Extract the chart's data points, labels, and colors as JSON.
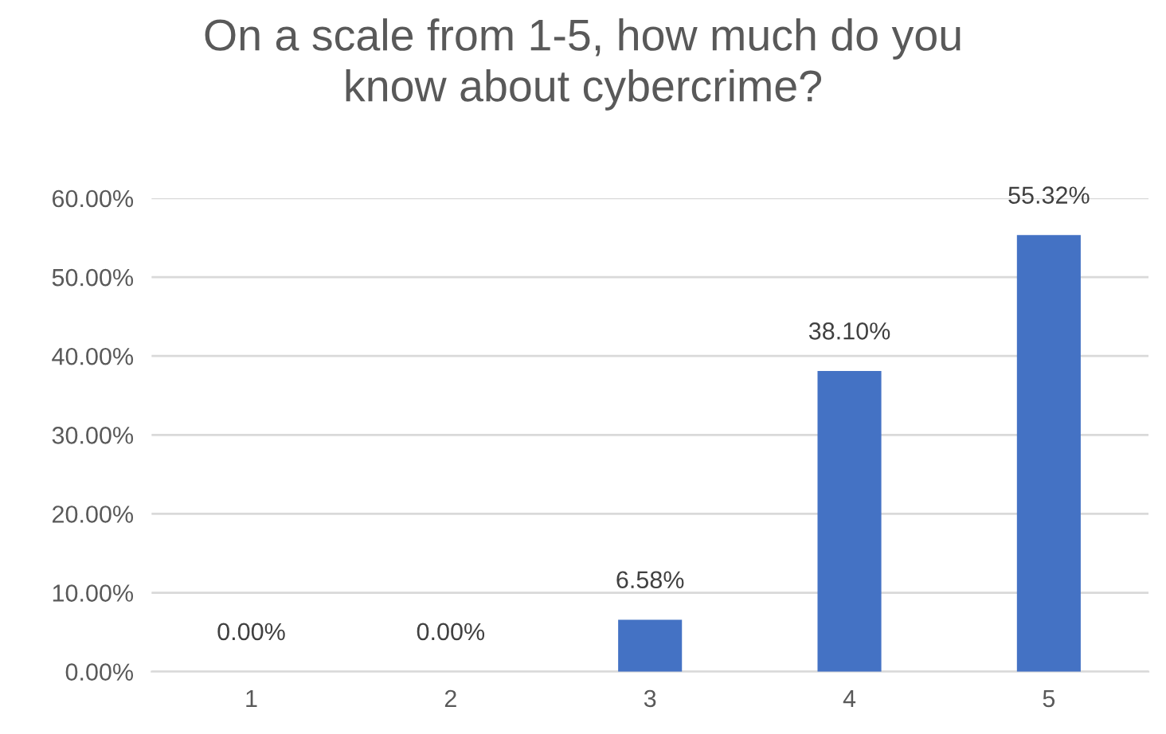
{
  "chart_data": {
    "type": "bar",
    "title": "On a scale from 1-5, how much do you\nknow about cybercrime?",
    "categories": [
      "1",
      "2",
      "3",
      "4",
      "5"
    ],
    "values": [
      0,
      0,
      6.58,
      38.1,
      55.32
    ],
    "value_labels": [
      "0.00%",
      "0.00%",
      "6.58%",
      "38.10%",
      "55.32%"
    ],
    "color": "#4472c4",
    "ylim": [
      0,
      60
    ],
    "yticks": [
      {
        "value": 0,
        "label": "0.00%"
      },
      {
        "value": 10,
        "label": "10.00%"
      },
      {
        "value": 20,
        "label": "20.00%"
      },
      {
        "value": 30,
        "label": "30.00%"
      },
      {
        "value": 40,
        "label": "40.00%"
      },
      {
        "value": 50,
        "label": "50.00%"
      },
      {
        "value": 60,
        "label": "60.00%"
      }
    ],
    "grid": "y"
  }
}
